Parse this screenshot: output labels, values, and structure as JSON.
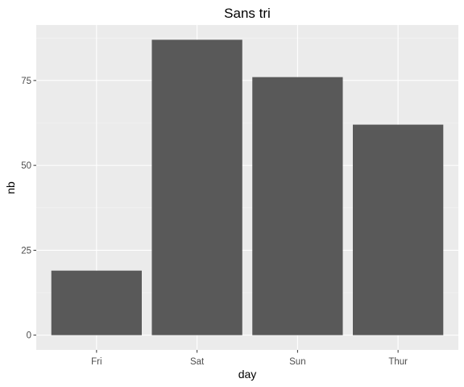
{
  "chart_data": {
    "type": "bar",
    "title": "Sans tri",
    "xlabel": "day",
    "ylabel": "nb",
    "categories": [
      "Fri",
      "Sat",
      "Sun",
      "Thur"
    ],
    "values": [
      19,
      87,
      76,
      62
    ],
    "ylim": [
      -4.35,
      91.35
    ],
    "yticks": [
      0,
      25,
      50,
      75
    ],
    "ytick_labels": [
      "0",
      "25",
      "50",
      "75"
    ],
    "grid": true,
    "colors": {
      "bar": "#595959",
      "panel": "#ebebeb",
      "grid_major": "#ffffff",
      "grid_minor": "#f5f5f5",
      "tick": "#333333"
    }
  }
}
